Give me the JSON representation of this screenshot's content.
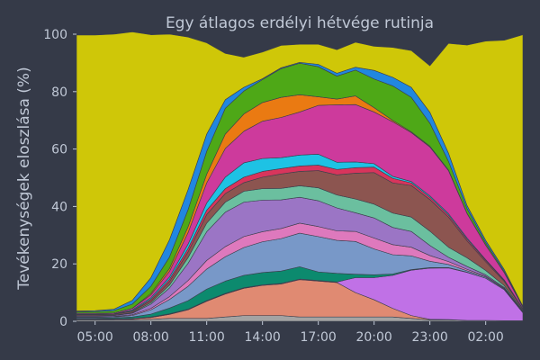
{
  "chart_data": {
    "type": "area",
    "stacked": true,
    "title": "Egy átlagos erdélyi hétvége rutinja",
    "xlabel": "",
    "ylabel": "Tevékenységek eloszlása (%)",
    "ylim": [
      0,
      100
    ],
    "yticks": [
      0,
      20,
      40,
      60,
      80,
      100
    ],
    "x": [
      "04:00",
      "05:00",
      "06:00",
      "07:00",
      "08:00",
      "09:00",
      "10:00",
      "11:00",
      "12:00",
      "13:00",
      "14:00",
      "15:00",
      "16:00",
      "17:00",
      "18:00",
      "19:00",
      "20:00",
      "21:00",
      "22:00",
      "23:00",
      "00:00",
      "01:00",
      "02:00",
      "03:00",
      "04:00"
    ],
    "xticks": [
      "05:00",
      "08:00",
      "11:00",
      "14:00",
      "17:00",
      "20:00",
      "23:00",
      "02:00"
    ],
    "background_color": "#353a48",
    "grid": false,
    "legend": "none",
    "series": [
      {
        "color": "#a3a3a3",
        "values": [
          0.5,
          0.5,
          0.5,
          0.5,
          0.7,
          1,
          1,
          1,
          1.5,
          2,
          2,
          2,
          1.5,
          1.5,
          1.5,
          1.5,
          1.5,
          1.5,
          1,
          0.5,
          0.5,
          0.3,
          0.3,
          0.2,
          0.2
        ]
      },
      {
        "color": "#e08a72",
        "values": [
          0.2,
          0.2,
          0.2,
          0.3,
          0.6,
          1.4,
          3,
          6,
          8,
          9.5,
          10.5,
          11,
          13,
          12.5,
          12,
          8.5,
          6,
          3,
          1,
          0.2,
          0.1,
          0,
          0,
          0,
          0
        ]
      },
      {
        "color": "#c071e6",
        "values": [
          0.2,
          0.2,
          0.2,
          0.2,
          0.2,
          0.2,
          0.2,
          0.2,
          0.2,
          0.2,
          0.2,
          0.2,
          0.2,
          0.2,
          0.2,
          5.2,
          7.7,
          11.5,
          15.8,
          17.8,
          18,
          16.7,
          14.7,
          10.8,
          2.8
        ]
      },
      {
        "color": "#0c8a6e",
        "values": [
          0.2,
          0.2,
          0.3,
          0.5,
          1,
          2,
          3,
          4,
          4.3,
          4.3,
          4.3,
          4.3,
          4.3,
          3,
          3,
          1.2,
          1,
          0.5,
          0.2,
          0.2,
          0.1,
          0.1,
          0,
          0,
          0
        ]
      },
      {
        "color": "#7898c8",
        "values": [
          0.3,
          0.3,
          0.3,
          0.5,
          1.5,
          3,
          5,
          7,
          8.5,
          9.7,
          10.7,
          11.3,
          11.7,
          12.3,
          11.5,
          11.4,
          9,
          6.7,
          4.8,
          2.2,
          1.1,
          0.5,
          0.4,
          0.3,
          0.2
        ]
      },
      {
        "color": "#de79bd",
        "values": [
          0.2,
          0.2,
          0.2,
          0.3,
          0.5,
          1,
          2,
          3,
          3.5,
          3.8,
          3.5,
          3.5,
          3.5,
          3.5,
          3.3,
          3.5,
          3.8,
          3.5,
          3,
          2,
          1,
          0.5,
          0.3,
          0.2,
          0.1
        ]
      },
      {
        "color": "#9b75c5",
        "values": [
          0.3,
          0.3,
          0.3,
          0.5,
          1.5,
          3,
          6,
          10,
          12,
          12,
          11,
          10,
          9,
          9,
          8,
          6.5,
          7,
          6,
          5.5,
          3.5,
          1.5,
          1,
          0.5,
          0.3,
          0.2
        ]
      },
      {
        "color": "#6bbf9f",
        "values": [
          0.1,
          0.1,
          0.1,
          0.2,
          0.5,
          1,
          2,
          3,
          3.5,
          3.8,
          4,
          4,
          4,
          4.5,
          4.5,
          4.8,
          4.8,
          5,
          5,
          5,
          3.5,
          3,
          1.5,
          0.6,
          0.3
        ]
      },
      {
        "color": "#8c5550",
        "values": [
          0.3,
          0.3,
          0.3,
          0.5,
          0.7,
          1.2,
          2,
          3,
          3,
          3,
          4,
          5,
          5,
          6,
          7,
          9,
          11,
          10.5,
          11,
          11,
          10.5,
          5.9,
          3,
          1.5,
          0.4
        ]
      },
      {
        "color": "#d8355c",
        "values": [
          0.1,
          0.1,
          0.1,
          0.2,
          0.5,
          0.8,
          1.2,
          1.5,
          1.7,
          1.9,
          2,
          1.9,
          1.9,
          1.9,
          1.9,
          1.9,
          1.9,
          1.6,
          0.9,
          0.8,
          0.7,
          0.6,
          0.5,
          0.3,
          0.1
        ]
      },
      {
        "color": "#1ec2e4",
        "values": [
          0.1,
          0.1,
          0.1,
          0.3,
          0.5,
          0.8,
          1.5,
          2.5,
          4,
          5,
          4.5,
          3.8,
          3.8,
          3.8,
          2.5,
          2,
          1.2,
          0.7,
          0.5,
          0.5,
          0.5,
          0.4,
          0.3,
          0.2,
          0.1
        ]
      },
      {
        "color": "#cd3a9c",
        "values": [
          0.3,
          0.3,
          0.3,
          0.5,
          1,
          2,
          4,
          7,
          10,
          11,
          13,
          14,
          15,
          17,
          20,
          20,
          18,
          19,
          17,
          17,
          15,
          8.5,
          5,
          2.5,
          0.5
        ]
      },
      {
        "color": "#ea7a12",
        "values": [
          0,
          0,
          0,
          0,
          0.5,
          1,
          2,
          3,
          5,
          6,
          6.5,
          7,
          6,
          3,
          2,
          3,
          1.5,
          0.5,
          0.3,
          0.3,
          0.2,
          0.1,
          0.1,
          0,
          0
        ]
      },
      {
        "color": "#4ea817",
        "values": [
          0.5,
          0.6,
          0.8,
          1.5,
          2.5,
          4,
          6,
          8,
          9,
          8,
          8,
          10,
          11,
          10.5,
          8,
          9,
          10,
          12,
          12,
          8,
          3,
          1.6,
          0.8,
          0.5,
          0.2
        ]
      },
      {
        "color": "#2187e0",
        "values": [
          0.3,
          0.3,
          0.5,
          1.3,
          3,
          6,
          7,
          6,
          3,
          1.3,
          0.3,
          0.3,
          0.3,
          0.8,
          1,
          1,
          3,
          3,
          3.5,
          3.8,
          2.9,
          1.1,
          0.8,
          0.6,
          0.2
        ]
      },
      {
        "color": "#cfc708",
        "values": [
          96.1,
          96,
          95.8,
          93.5,
          84.6,
          71.6,
          53.1,
          31.8,
          16.1,
          10.5,
          9.3,
          7.8,
          6.3,
          7,
          8.2,
          8.7,
          8.4,
          10.4,
          12.8,
          16.2,
          38.2,
          55.9,
          69.4,
          79.9,
          94.5
        ]
      }
    ]
  }
}
